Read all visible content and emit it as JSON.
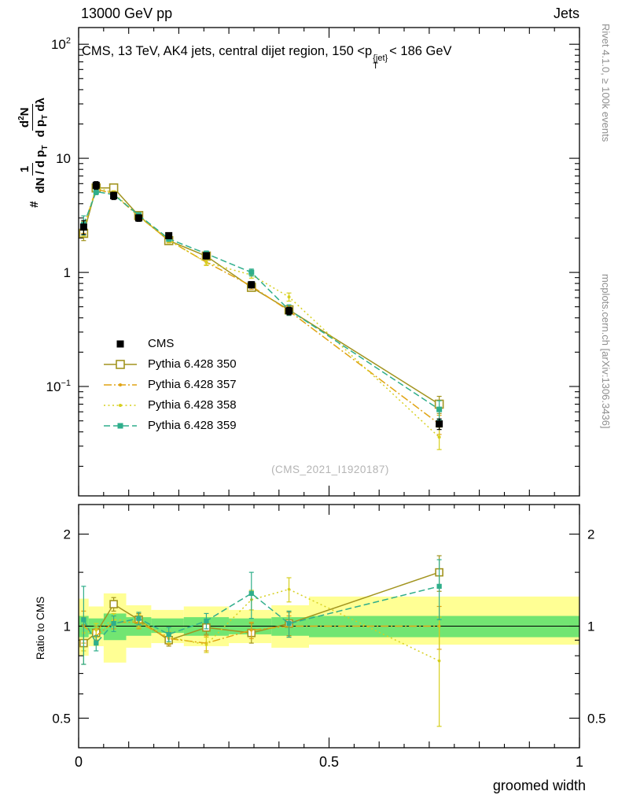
{
  "header": {
    "left": "13000 GeV pp",
    "right": "Jets"
  },
  "title": {
    "part1": "CMS, 13 TeV, AK4 jets, central dijet region, 150 <",
    "p": "p",
    "sup": "{jet}",
    "sub": "T",
    "part2": "< 186 GeV"
  },
  "ylabel_main": {
    "hash": "#",
    "f1num": "1",
    "f1den_pre": "dN / d p",
    "f1den_sub": "T",
    "f2num_pre": "d",
    "f2num_sup": "2",
    "f2num_post": "N",
    "f2den_pre": "d p",
    "f2den_sub": "T",
    "f2den_post": " dλ"
  },
  "ylabel_ratio": "Ratio to CMS",
  "xlabel": "groomed width",
  "watermark": "(CMS_2021_I1920187)",
  "side_notes": {
    "top_right": "Rivet 4.1.0, ≥ 100k events",
    "bottom_right": "mcplots.cern.ch [arXiv:1306.3436]"
  },
  "chart_data": {
    "type": "line",
    "title": "CMS, 13 TeV, AK4 jets, central dijet region, 150 < pT(jet) < 186 GeV",
    "xlabel": "groomed width",
    "ylabel": "# 1/(dN/dpT) d2N/(dpT dlambda)",
    "xlim": [
      0,
      1
    ],
    "x": [
      0.01,
      0.035,
      0.07,
      0.12,
      0.18,
      0.255,
      0.345,
      0.42,
      0.72
    ],
    "main": {
      "yscale": "log",
      "ylim": [
        0.011,
        140
      ],
      "yticks": [
        {
          "v": 100,
          "base": "10",
          "exp": "2"
        },
        {
          "v": 10,
          "base": "10",
          "exp": ""
        },
        {
          "v": 1,
          "base": "1",
          "exp": ""
        },
        {
          "v": 0.1,
          "base": "10",
          "exp": "−1"
        }
      ]
    },
    "ratio": {
      "yscale": "log",
      "ylim": [
        0.4,
        2.5
      ],
      "yticks": [
        {
          "v": 2,
          "label": "2"
        },
        {
          "v": 1,
          "label": "1"
        },
        {
          "v": 0.5,
          "label": "0.5"
        }
      ]
    },
    "xticks": [
      {
        "v": 0,
        "label": "0"
      },
      {
        "v": 0.5,
        "label": "0.5"
      },
      {
        "v": 1,
        "label": "1"
      }
    ],
    "series": [
      {
        "name": "CMS",
        "color": "#000000",
        "marker": "square-filled",
        "marker_size": 9,
        "line": "none",
        "values": [
          2.5,
          5.8,
          4.7,
          3.0,
          2.1,
          1.4,
          0.78,
          0.46,
          0.047
        ],
        "yerr": [
          0.35,
          0.45,
          0.35,
          0.2,
          0.13,
          0.09,
          0.05,
          0.035,
          0.005
        ]
      },
      {
        "name": "Pythia 6.428 350",
        "color": "#a2941f",
        "marker": "square-open",
        "marker_size": 10,
        "line": "solid",
        "values": [
          2.2,
          5.5,
          5.5,
          3.15,
          1.9,
          1.39,
          0.74,
          0.47,
          0.07
        ],
        "yerr": [
          0.3,
          0.3,
          0.3,
          0.15,
          0.1,
          0.07,
          0.05,
          0.04,
          0.012
        ],
        "ratio": [
          0.88,
          0.95,
          1.18,
          1.05,
          0.9,
          0.99,
          0.95,
          1.02,
          1.5
        ],
        "ratio_err": [
          0.13,
          0.05,
          0.06,
          0.05,
          0.04,
          0.05,
          0.07,
          0.09,
          0.2
        ]
      },
      {
        "name": "Pythia 6.428 357",
        "color": "#e0a414",
        "marker": "dot",
        "marker_size": 4,
        "line": "dashdot",
        "values": [
          2.5,
          5.4,
          4.85,
          3.1,
          1.91,
          1.23,
          0.76,
          0.46,
          0.047
        ],
        "yerr": [
          0.3,
          0.3,
          0.25,
          0.15,
          0.1,
          0.07,
          0.05,
          0.04,
          0.009
        ],
        "ratio": [
          1.0,
          0.93,
          1.03,
          1.03,
          0.91,
          0.88,
          0.97,
          1.0,
          1.0
        ],
        "ratio_err": [
          0.12,
          0.05,
          0.05,
          0.05,
          0.04,
          0.05,
          0.06,
          0.08,
          0.16
        ]
      },
      {
        "name": "Pythia 6.428 358",
        "color": "#d6cf1e",
        "marker": "dot",
        "marker_size": 4,
        "line": "dotted",
        "values": [
          2.38,
          5.6,
          4.95,
          3.12,
          1.93,
          1.22,
          0.95,
          0.61,
          0.036
        ],
        "yerr": [
          0.3,
          0.3,
          0.25,
          0.15,
          0.1,
          0.07,
          0.06,
          0.05,
          0.008
        ],
        "ratio": [
          0.95,
          0.97,
          1.05,
          1.04,
          0.92,
          0.87,
          1.22,
          1.32,
          0.77
        ],
        "ratio_err": [
          0.12,
          0.05,
          0.05,
          0.05,
          0.04,
          0.05,
          0.09,
          0.12,
          0.3
        ]
      },
      {
        "name": "Pythia 6.428 359",
        "color": "#2fae8b",
        "marker": "square-filled",
        "marker_size": 7,
        "line": "dashed",
        "values": [
          2.63,
          5.1,
          4.8,
          3.18,
          1.97,
          1.46,
          1.0,
          0.47,
          0.063
        ],
        "yerr": [
          0.5,
          0.3,
          0.25,
          0.15,
          0.1,
          0.08,
          0.07,
          0.05,
          0.012
        ],
        "ratio": [
          1.05,
          0.88,
          1.02,
          1.06,
          0.94,
          1.04,
          1.28,
          1.02,
          1.35
        ],
        "ratio_err": [
          0.3,
          0.05,
          0.06,
          0.05,
          0.05,
          0.06,
          0.22,
          0.1,
          0.3
        ]
      }
    ],
    "bands": {
      "yellow": "#ffff94",
      "green": "#72e572",
      "bins": [
        {
          "x0": 0.0,
          "x1": 0.02,
          "ylo": 0.8,
          "yhi": 1.23,
          "glo": 0.92,
          "ghi": 1.08
        },
        {
          "x0": 0.02,
          "x1": 0.05,
          "ylo": 0.86,
          "yhi": 1.16,
          "glo": 0.94,
          "ghi": 1.06
        },
        {
          "x0": 0.05,
          "x1": 0.095,
          "ylo": 0.76,
          "yhi": 1.28,
          "glo": 0.9,
          "ghi": 1.1
        },
        {
          "x0": 0.095,
          "x1": 0.145,
          "ylo": 0.85,
          "yhi": 1.17,
          "glo": 0.93,
          "ghi": 1.07
        },
        {
          "x0": 0.145,
          "x1": 0.21,
          "ylo": 0.88,
          "yhi": 1.13,
          "glo": 0.95,
          "ghi": 1.06
        },
        {
          "x0": 0.21,
          "x1": 0.3,
          "ylo": 0.86,
          "yhi": 1.16,
          "glo": 0.93,
          "ghi": 1.07
        },
        {
          "x0": 0.3,
          "x1": 0.385,
          "ylo": 0.88,
          "yhi": 1.13,
          "glo": 0.94,
          "ghi": 1.06
        },
        {
          "x0": 0.385,
          "x1": 0.46,
          "ylo": 0.85,
          "yhi": 1.17,
          "glo": 0.93,
          "ghi": 1.07
        },
        {
          "x0": 0.46,
          "x1": 1.0,
          "ylo": 0.87,
          "yhi": 1.25,
          "glo": 0.92,
          "ghi": 1.08
        }
      ]
    }
  }
}
